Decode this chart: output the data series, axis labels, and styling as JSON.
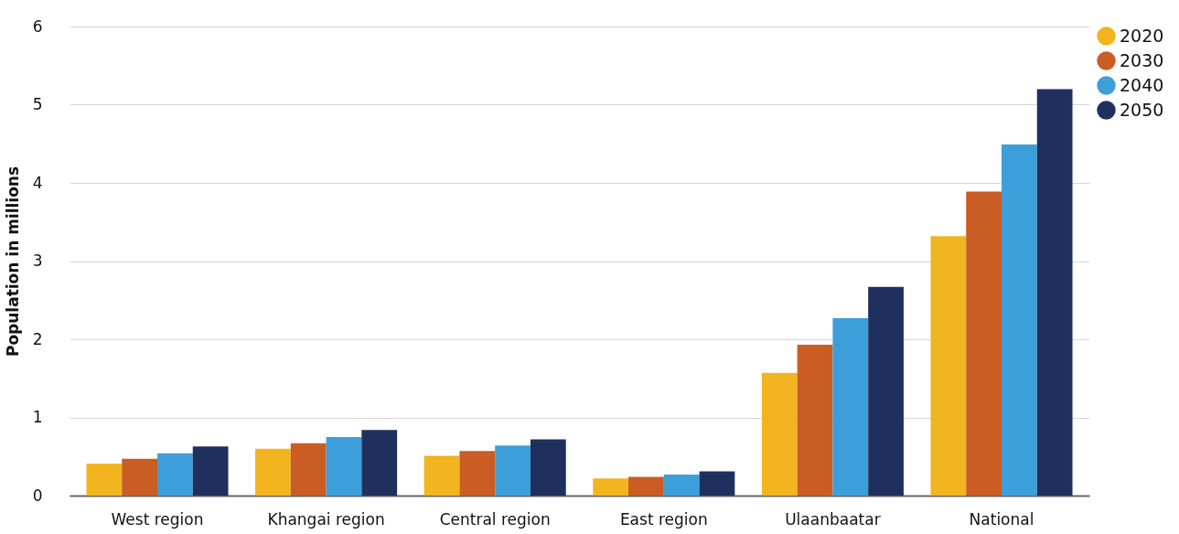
{
  "chart_data": {
    "type": "bar",
    "ylabel": "Population in millions",
    "categories": [
      "West region",
      "Khangai region",
      "Central region",
      "East region",
      "Ulaanbaatar",
      "National"
    ],
    "series": [
      {
        "name": "2020",
        "color": "#f2b41f",
        "values": [
          0.41,
          0.6,
          0.51,
          0.22,
          1.57,
          3.32
        ]
      },
      {
        "name": "2030",
        "color": "#c95d23",
        "values": [
          0.47,
          0.67,
          0.57,
          0.24,
          1.93,
          3.89
        ]
      },
      {
        "name": "2040",
        "color": "#3d9fd9",
        "values": [
          0.54,
          0.75,
          0.64,
          0.27,
          2.27,
          4.49
        ]
      },
      {
        "name": "2050",
        "color": "#20305e",
        "values": [
          0.63,
          0.84,
          0.72,
          0.31,
          2.67,
          5.2
        ]
      }
    ],
    "ylim": [
      0,
      6
    ],
    "yticks": [
      0,
      1,
      2,
      3,
      4,
      5,
      6
    ],
    "grid": "y",
    "legend": "right"
  }
}
